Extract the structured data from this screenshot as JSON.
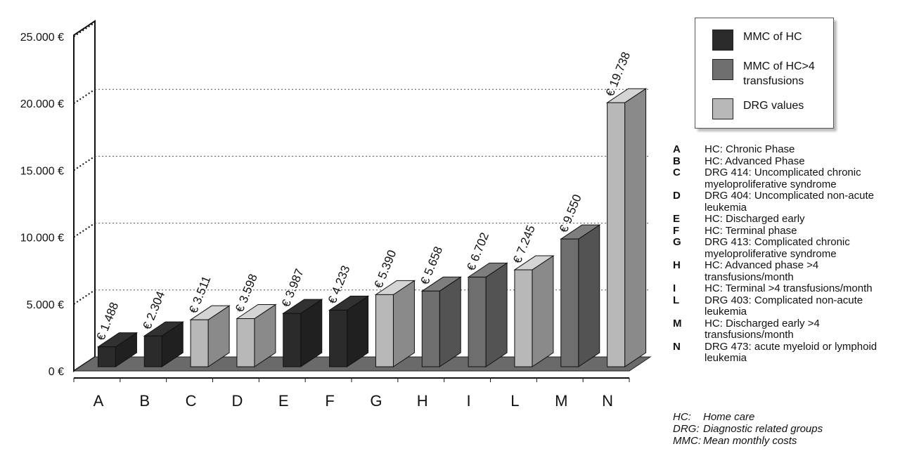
{
  "chart_data": {
    "type": "bar",
    "categories": [
      "A",
      "B",
      "C",
      "D",
      "E",
      "F",
      "G",
      "H",
      "I",
      "L",
      "M",
      "N"
    ],
    "values": [
      1488,
      2304,
      3511,
      3598,
      3987,
      4233,
      5390,
      5658,
      6702,
      7245,
      9550,
      19738
    ],
    "value_labels": [
      "€ 1.488",
      "€ 2.304",
      "€ 3.511",
      "€ 3.598",
      "€ 3.987",
      "€ 4.233",
      "€ 5.390",
      "€ 5.658",
      "€ 6.702",
      "€ 7.245",
      "€ 9.550",
      "€ 19.738"
    ],
    "series_index": [
      0,
      0,
      2,
      2,
      0,
      0,
      2,
      1,
      1,
      2,
      1,
      2
    ],
    "series": [
      {
        "name": "MMC of HC",
        "color": "#2b2b2b"
      },
      {
        "name": "MMC of HC>4 transfusions",
        "color": "#6e6e6e"
      },
      {
        "name": "DRG values",
        "color": "#b8b8b8"
      }
    ],
    "y_ticks": [
      "0 €",
      "5.000 €",
      "10.000 €",
      "15.000 €",
      "20.000 €",
      "25.000 €"
    ],
    "ylim": [
      0,
      25000
    ],
    "ystep": 5000,
    "grid": "dotted",
    "legend_position": "top-right"
  },
  "legend": {
    "items": [
      {
        "label": "MMC of HC"
      },
      {
        "label": "MMC of HC>4 transfusions"
      },
      {
        "label": "DRG values"
      }
    ]
  },
  "key": [
    {
      "letter": "A",
      "desc": "HC: Chronic Phase"
    },
    {
      "letter": "B",
      "desc": "HC: Advanced Phase"
    },
    {
      "letter": "C",
      "desc": "DRG 414: Uncomplicated chronic myeloproliferative syndrome"
    },
    {
      "letter": "D",
      "desc": "DRG 404: Uncomplicated non-acute leukemia"
    },
    {
      "letter": "E",
      "desc": "HC: Discharged early"
    },
    {
      "letter": "F",
      "desc": "HC: Terminal phase"
    },
    {
      "letter": "G",
      "desc": "DRG 413: Complicated chronic myeloproliferative syndrome"
    },
    {
      "letter": "H",
      "desc": "HC: Advanced phase >4 transfusions/month"
    },
    {
      "letter": "I",
      "desc": "HC: Terminal  >4 transfusions/month"
    },
    {
      "letter": "L",
      "desc": "DRG 403: Complicated non-acute leukemia"
    },
    {
      "letter": "M",
      "desc": "HC: Discharged early >4 transfusions/month"
    },
    {
      "letter": "N",
      "desc": "DRG 473: acute myeloid or lymphoid leukemia"
    }
  ],
  "abbreviations": [
    {
      "abbr": "HC:",
      "meaning": "Home care"
    },
    {
      "abbr": "DRG:",
      "meaning": "Diagnostic related groups"
    },
    {
      "abbr": "MMC:",
      "meaning": "Mean monthly costs"
    }
  ]
}
